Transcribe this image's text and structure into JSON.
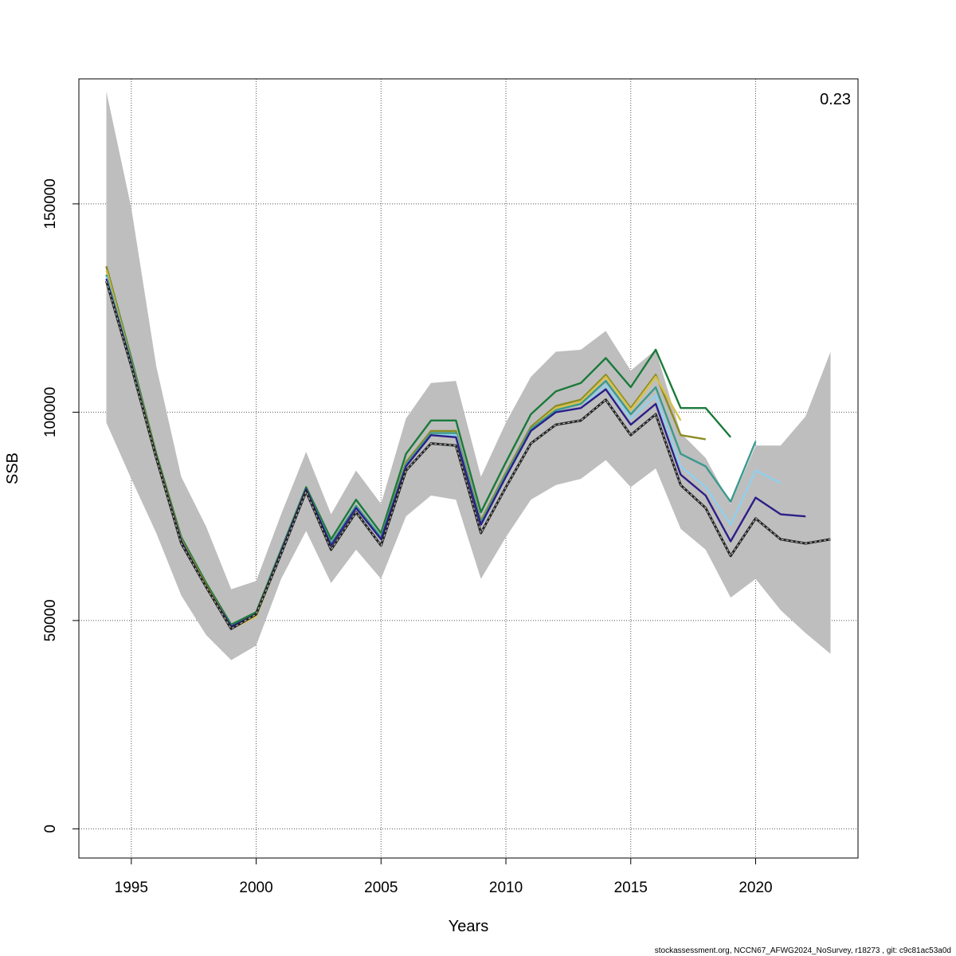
{
  "chart_data": {
    "type": "line",
    "xlabel": "Years",
    "ylabel": "SSB",
    "xlim": [
      1992.9,
      2024.1
    ],
    "ylim": [
      -7000,
      180000
    ],
    "x_ticks": [
      1995,
      2000,
      2005,
      2010,
      2015,
      2020
    ],
    "y_ticks": [
      0,
      50000,
      100000,
      150000
    ],
    "x_tick_labels": [
      "1995",
      "2000",
      "2005",
      "2010",
      "2015",
      "2020"
    ],
    "y_tick_labels": [
      "0",
      "50000",
      "100000",
      "150000"
    ],
    "grid": true,
    "annotation": "0.23",
    "footer": "stockassessment.org, NCCN67_AFWG2024_NoSurvey, r18273 , git: c9c81ac53a0d",
    "ci_band": {
      "x": [
        1994,
        1995,
        1996,
        1997,
        1998,
        1999,
        2000,
        2001,
        2002,
        2003,
        2004,
        2005,
        2006,
        2007,
        2008,
        2009,
        2010,
        2011,
        2012,
        2013,
        2014,
        2015,
        2016,
        2017,
        2018,
        2019,
        2020,
        2021,
        2022,
        2023
      ],
      "lower": [
        97500,
        84000,
        71000,
        56000,
        46500,
        40500,
        44000,
        60000,
        71500,
        59000,
        67000,
        60000,
        75000,
        80000,
        79000,
        60000,
        70000,
        79000,
        82500,
        84000,
        88500,
        82000,
        86500,
        72000,
        67000,
        55500,
        60000,
        52500,
        47000,
        42000
      ],
      "upper": [
        177000,
        149000,
        111000,
        84500,
        72500,
        57500,
        59500,
        75500,
        90500,
        75500,
        86000,
        78000,
        98500,
        107000,
        107500,
        84500,
        97500,
        108500,
        114500,
        115000,
        119500,
        110000,
        115000,
        95000,
        89000,
        78000,
        92000,
        92000,
        99000,
        114500
      ]
    },
    "series": [
      {
        "color": "#1a7a3a",
        "x": [
          1994,
          1995,
          1996,
          1997,
          1998,
          1999,
          2000,
          2001,
          2002,
          2003,
          2004,
          2005,
          2006,
          2007,
          2008,
          2009,
          2010,
          2011,
          2012,
          2013,
          2014,
          2015,
          2016,
          2017,
          2018,
          2019
        ],
        "values": [
          135000,
          113000,
          90000,
          70000,
          59000,
          49000,
          52000,
          67000,
          82000,
          69500,
          79000,
          71000,
          90000,
          98000,
          98000,
          76000,
          88000,
          99500,
          105000,
          107000,
          113000,
          106000,
          115000,
          101000,
          101000,
          94000
        ]
      },
      {
        "color": "#8c8c24",
        "x": [
          1994,
          1995,
          1996,
          1997,
          1998,
          1999,
          2000,
          2001,
          2002,
          2003,
          2004,
          2005,
          2006,
          2007,
          2008,
          2009,
          2010,
          2011,
          2012,
          2013,
          2014,
          2015,
          2016,
          2017,
          2018
        ],
        "values": [
          135000,
          112500,
          89500,
          69500,
          58500,
          48500,
          51500,
          66500,
          81500,
          68500,
          77500,
          70000,
          88000,
          95500,
          95500,
          74000,
          85500,
          96500,
          101500,
          103000,
          109000,
          101000,
          109000,
          94500,
          93500
        ]
      },
      {
        "color": "#d8c24a",
        "x": [
          1994,
          1995,
          1996,
          1997,
          1998,
          1999,
          2000,
          2001,
          2002,
          2003,
          2004,
          2005,
          2006,
          2007,
          2008,
          2009,
          2010,
          2011,
          2012,
          2013,
          2014,
          2015,
          2016,
          2017
        ],
        "values": [
          134000,
          112000,
          89000,
          69000,
          58000,
          48000,
          51000,
          66000,
          81000,
          68000,
          77000,
          69500,
          87500,
          95000,
          95000,
          73500,
          85000,
          96000,
          101000,
          102500,
          108500,
          100500,
          108500,
          98000
        ]
      },
      {
        "color": "#3a9a8e",
        "x": [
          1994,
          1995,
          1996,
          1997,
          1998,
          1999,
          2000,
          2001,
          2002,
          2003,
          2004,
          2005,
          2006,
          2007,
          2008,
          2009,
          2010,
          2011,
          2012,
          2013,
          2014,
          2015,
          2016,
          2017,
          2018,
          2019,
          2020
        ],
        "values": [
          133000,
          112000,
          89000,
          69000,
          58000,
          48500,
          51500,
          66500,
          81500,
          68500,
          77500,
          70000,
          87500,
          95000,
          95000,
          73500,
          85000,
          96000,
          100500,
          102000,
          107500,
          99500,
          106000,
          90000,
          87000,
          78500,
          93000
        ]
      },
      {
        "color": "#8fd0ee",
        "x": [
          1994,
          1995,
          1996,
          1997,
          1998,
          1999,
          2000,
          2001,
          2002,
          2003,
          2004,
          2005,
          2006,
          2007,
          2008,
          2009,
          2010,
          2011,
          2012,
          2013,
          2014,
          2015,
          2016,
          2017,
          2018,
          2019,
          2020,
          2021
        ],
        "values": [
          132500,
          111500,
          89000,
          69000,
          58000,
          48500,
          51500,
          66500,
          81500,
          68000,
          77000,
          69500,
          87000,
          94500,
          94500,
          73000,
          84500,
          95500,
          100000,
          101000,
          106500,
          98500,
          104000,
          87000,
          82000,
          73000,
          86000,
          83000
        ]
      },
      {
        "color": "#2b1f88",
        "x": [
          1994,
          1995,
          1996,
          1997,
          1998,
          1999,
          2000,
          2001,
          2002,
          2003,
          2004,
          2005,
          2006,
          2007,
          2008,
          2009,
          2010,
          2011,
          2012,
          2013,
          2014,
          2015,
          2016,
          2017,
          2018,
          2019,
          2020,
          2021,
          2022
        ],
        "values": [
          132000,
          111500,
          89000,
          69000,
          58000,
          48500,
          51500,
          66500,
          81500,
          68000,
          77000,
          69500,
          87000,
          94500,
          94000,
          73000,
          84500,
          95500,
          100000,
          101000,
          105500,
          97000,
          102000,
          85000,
          80000,
          69000,
          79500,
          75500,
          75000
        ]
      },
      {
        "color": "#222222",
        "dashed": true,
        "x": [
          1994,
          1995,
          1996,
          1997,
          1998,
          1999,
          2000,
          2001,
          2002,
          2003,
          2004,
          2005,
          2006,
          2007,
          2008,
          2009,
          2010,
          2011,
          2012,
          2013,
          2014,
          2015,
          2016,
          2017,
          2018,
          2019,
          2020,
          2021,
          2022,
          2023
        ],
        "values": [
          131500,
          111000,
          89000,
          68500,
          58000,
          48000,
          51500,
          66000,
          81000,
          67000,
          76000,
          68000,
          86000,
          92500,
          92000,
          71000,
          82000,
          92500,
          97000,
          98000,
          103000,
          94500,
          99500,
          82500,
          77000,
          65500,
          74500,
          69500,
          68500,
          69500
        ]
      }
    ]
  }
}
